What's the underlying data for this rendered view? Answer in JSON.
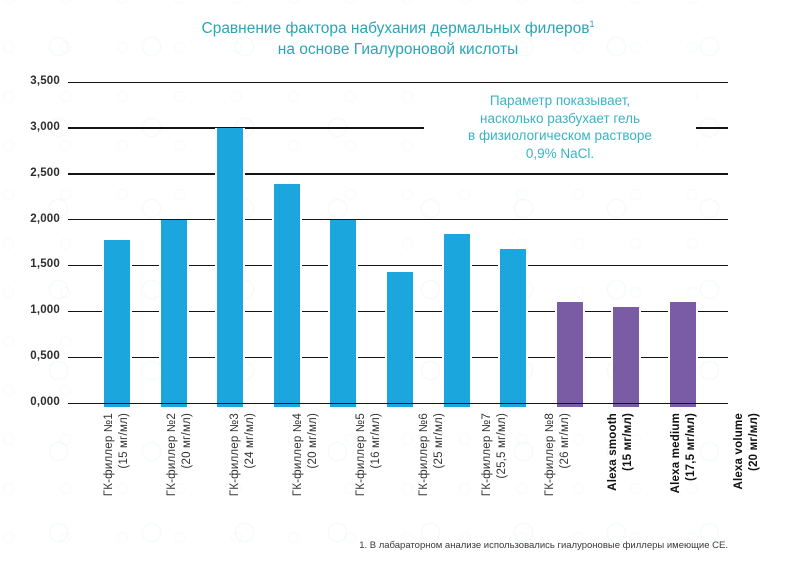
{
  "title": {
    "line1": "Сравнение фактора набухания  дермальных филеров",
    "superscript": "1",
    "line2": "на основе Гиалуроновой кислоты"
  },
  "annotation": {
    "text": "Параметр показывает,\nнасколько разбухает гель\nв физиологическом растворе\n0,9% NaCl."
  },
  "footnote": "1. В лабараторном анализе использовались гиалуроновые филлеры имеющие СЕ.",
  "colors": {
    "title_teal": "#2aa5b5",
    "annotation_teal": "#3ab3c4",
    "bar_cyan": "#1ba7de",
    "bar_purple": "#7a5ca5",
    "gridline": "#141414",
    "axis_text": "#2e2e2e"
  },
  "chart_data": {
    "type": "bar",
    "title": "Сравнение фактора набухания дермальных филеров¹ на основе Гиалуроновой кислоты",
    "xlabel": "",
    "ylabel": "",
    "ylim": [
      0,
      3.5
    ],
    "grid": true,
    "ytick_labels_top_to_bottom": [
      "3,500",
      "3,000",
      "2,500",
      "2,000",
      "1,500",
      "1,000",
      "0,500",
      "0,000"
    ],
    "legend": "none",
    "bars": [
      {
        "label": "ГК-филлер №1",
        "dose": "(15 мг/мл)",
        "value": 1.775,
        "group": "hk-filler",
        "color": "#1ba7de"
      },
      {
        "label": "ГК-филлер №2",
        "dose": "(20 мг/мл)",
        "value": 2.0,
        "group": "hk-filler",
        "color": "#1ba7de"
      },
      {
        "label": "ГК-филлер №3",
        "dose": "(24 мг/мл)",
        "value": 3.0,
        "group": "hk-filler",
        "color": "#1ba7de"
      },
      {
        "label": "ГК-филлер №4",
        "dose": "(20 мг/мл)",
        "value": 2.39,
        "group": "hk-filler",
        "color": "#1ba7de"
      },
      {
        "label": "ГК-филлер №5",
        "dose": "(16 мг/мл)",
        "value": 2.0,
        "group": "hk-filler",
        "color": "#1ba7de"
      },
      {
        "label": "ГК-филлер №6",
        "dose": "(25 мг/мл)",
        "value": 1.43,
        "group": "hk-filler",
        "color": "#1ba7de"
      },
      {
        "label": "ГК-филлер №7",
        "dose": "(25,5 мг/мл)",
        "value": 1.84,
        "group": "hk-filler",
        "color": "#1ba7de"
      },
      {
        "label": "ГК-филлер №8",
        "dose": "(26 мг/мл)",
        "value": 1.675,
        "group": "hk-filler",
        "color": "#1ba7de"
      },
      {
        "label": "Alexa smooth",
        "dose": "(15 мг/мл)",
        "value": 1.1,
        "group": "alexa",
        "color": "#7a5ca5"
      },
      {
        "label": "Alexa medium",
        "dose": "(17,5 мг/мл)",
        "value": 1.05,
        "group": "alexa",
        "color": "#7a5ca5"
      },
      {
        "label": "Alexa volume",
        "dose": "(20 мг/мл)",
        "value": 1.1,
        "group": "alexa",
        "color": "#7a5ca5"
      }
    ]
  }
}
